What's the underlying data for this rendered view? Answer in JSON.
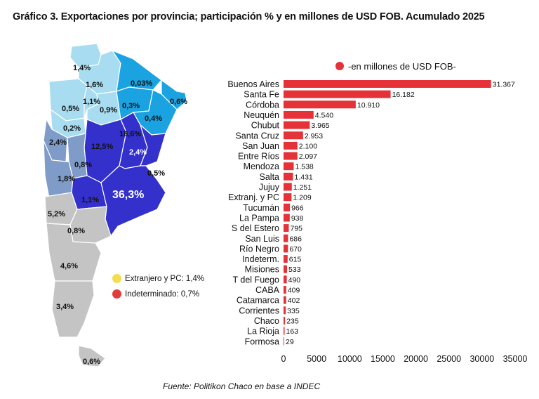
{
  "title": "Gráfico 3. Exportaciones por provincia; participación % y en millones de USD FOB. Acumulado 2025",
  "source": "Fuente: Politikon Chaco en base a INDEC",
  "map": {
    "labels": [
      "1,4%",
      "1,6%",
      "0,03%",
      "1,1%",
      "0,5%",
      "0,9%",
      "0,3%",
      "0,6%",
      "0,2%",
      "0,4%",
      "18,6%",
      "2,4%",
      "12,5%",
      "2,4%",
      "0,8%",
      "0,5%",
      "1,8%",
      "36,3%",
      "1,1%",
      "5,2%",
      "0,8%",
      "4,6%",
      "3,4%",
      "0,6%"
    ],
    "legend": [
      {
        "label": "Extranjero y PC: 1,4%",
        "color": "#f5dc50"
      },
      {
        "label": "Indeterminado: 0,7%",
        "color": "#e03a3a"
      }
    ],
    "colors": {
      "light": "#a8dcf0",
      "mid": "#1aa3e0",
      "steel": "#7f9bc7",
      "deep": "#3330cc",
      "gray": "#c4c4c4"
    }
  },
  "chart_data": {
    "type": "bar",
    "orientation": "horizontal",
    "legend": "-en millones de USD FOB-",
    "bar_color": "#e53238",
    "categories": [
      "Buenos Aires",
      "Santa Fe",
      "Córdoba",
      "Neuquén",
      "Chubut",
      "Santa Cruz",
      "San Juan",
      "Entre Ríos",
      "Mendoza",
      "Salta",
      "Jujuy",
      "Extranj. y PC",
      "Tucumán",
      "La Pampa",
      "S del Estero",
      "San Luis",
      "Río Negro",
      "Indeterm.",
      "Misiones",
      "T del Fuego",
      "CABA",
      "Catamarca",
      "Corrientes",
      "Chaco",
      "La Rioja",
      "Formosa"
    ],
    "values": [
      31367,
      16182,
      10910,
      4540,
      3965,
      2953,
      2100,
      2097,
      1538,
      1431,
      1251,
      1209,
      966,
      938,
      795,
      686,
      670,
      615,
      533,
      490,
      409,
      402,
      335,
      235,
      163,
      29
    ],
    "value_labels": [
      "31.367",
      "16.182",
      "10.910",
      "4.540",
      "3.965",
      "2.953",
      "2.100",
      "2.097",
      "1.538",
      "1.431",
      "1.251",
      "1.209",
      "966",
      "938",
      "795",
      "686",
      "670",
      "615",
      "533",
      "490",
      "409",
      "402",
      "335",
      "235",
      "163",
      "29"
    ],
    "xlim": [
      0,
      35000
    ],
    "xticks": [
      "0",
      "5000",
      "10000",
      "15000",
      "20000",
      "25000",
      "30000",
      "35000"
    ],
    "grid": false
  }
}
